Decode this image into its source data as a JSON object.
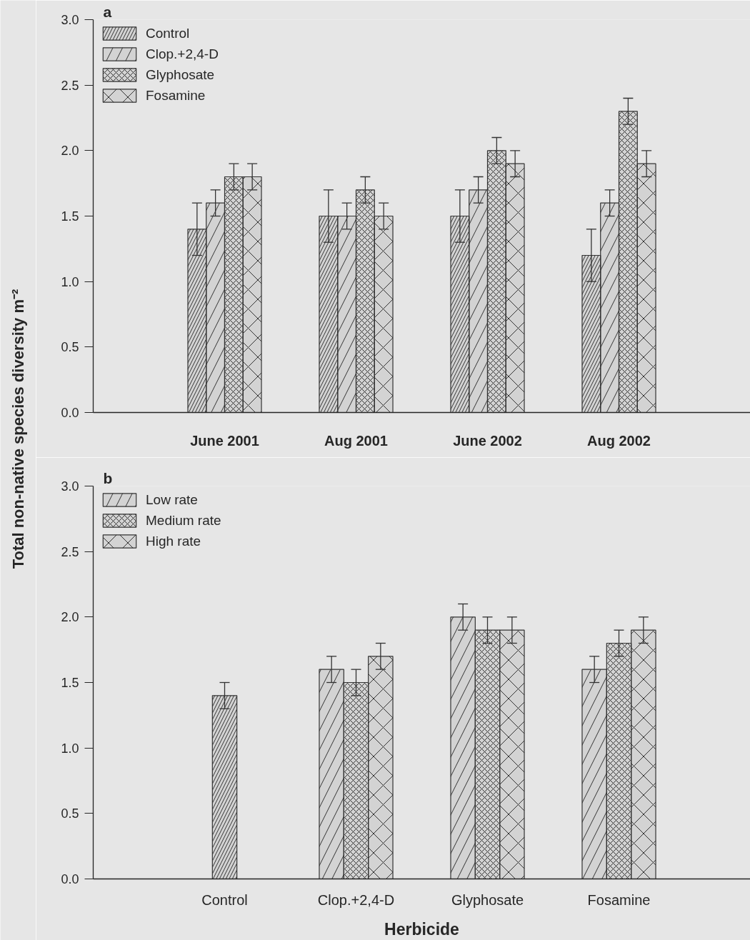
{
  "chart_data": [
    {
      "type": "bar",
      "title": "a",
      "ylabel": "Total non-native species diversity m⁻²",
      "categories": [
        "June 2001",
        "Aug 2001",
        "June 2002",
        "Aug 2002"
      ],
      "series": [
        {
          "name": "Control",
          "color": "#333333",
          "values": [
            1.4,
            1.5,
            1.5,
            1.2
          ],
          "errors": [
            0.2,
            0.2,
            0.2,
            0.2
          ]
        },
        {
          "name": "Clop.+2,4-D",
          "color": "#333333",
          "values": [
            1.6,
            1.5,
            1.7,
            1.6
          ],
          "errors": [
            0.1,
            0.1,
            0.1,
            0.1
          ]
        },
        {
          "name": "Glyphosate",
          "color": "#333333",
          "values": [
            1.8,
            1.7,
            2.0,
            2.3
          ],
          "errors": [
            0.1,
            0.1,
            0.1,
            0.1
          ]
        },
        {
          "name": "Fosamine",
          "color": "#333333",
          "values": [
            1.8,
            1.5,
            1.9,
            1.9
          ],
          "errors": [
            0.1,
            0.1,
            0.1,
            0.1
          ]
        }
      ],
      "ylim": [
        0,
        3.0
      ],
      "yticks": [
        {
          "value": 0,
          "label": "0.0"
        },
        0.5,
        {
          "value": 1,
          "label": "1.0"
        },
        1.5,
        {
          "value": 2,
          "label": "2.0"
        },
        2.5,
        {
          "value": 3,
          "label": "3.0"
        }
      ],
      "legend": "top left"
    },
    {
      "type": "bar",
      "title": "b",
      "xlabel": "Herbicide",
      "categories": [
        "Control",
        "Clop.+2,4-D",
        "Glyphosate",
        "Fosamine"
      ],
      "series": [
        {
          "color": "#333333",
          "values": [
            1.4,
            null,
            null,
            null
          ],
          "errors": [
            0.1,
            null,
            null,
            null
          ]
        },
        {
          "name": "Low rate",
          "color": "#333333",
          "values": [
            null,
            1.6,
            2.0,
            1.6
          ],
          "errors": [
            null,
            0.1,
            0.1,
            0.1
          ]
        },
        {
          "name": "Medium rate",
          "color": "#333333",
          "values": [
            null,
            1.5,
            1.9,
            1.8
          ],
          "errors": [
            null,
            0.1,
            0.1,
            0.1
          ]
        },
        {
          "name": "High rate",
          "color": "#333333",
          "values": [
            null,
            1.7,
            1.9,
            1.9
          ],
          "errors": [
            null,
            0.1,
            0.1,
            0.1
          ]
        }
      ],
      "ylim": [
        0,
        3.0
      ],
      "yticks": [
        {
          "value": 0,
          "label": "0.0"
        },
        0.5,
        {
          "value": 1,
          "label": "1.0"
        },
        1.5,
        {
          "value": 2,
          "label": "2.0"
        },
        2.5,
        {
          "value": 3,
          "label": "3.0"
        }
      ],
      "legend": "top left"
    }
  ]
}
